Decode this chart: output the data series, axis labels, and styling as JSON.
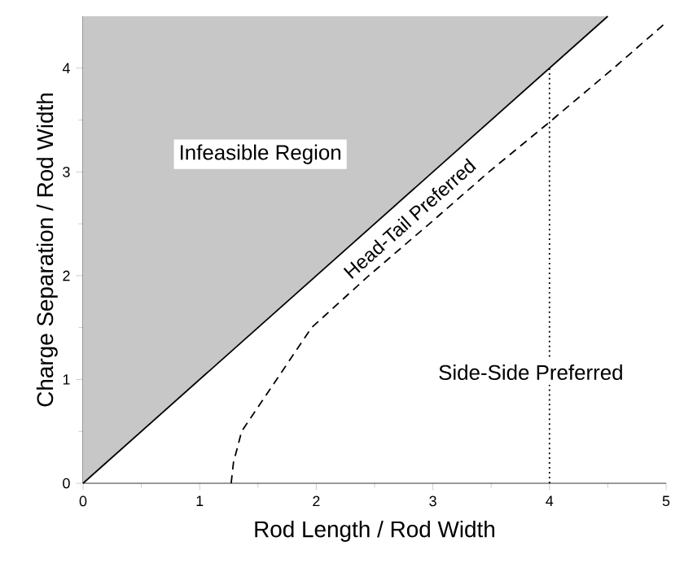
{
  "chart_data": {
    "type": "line",
    "xlabel": "Rod Length / Rod Width",
    "ylabel": "Charge Separation / Rod Width",
    "xlim": [
      0,
      5
    ],
    "ylim": [
      0,
      4.5
    ],
    "xticks": [
      0,
      1,
      2,
      3,
      4,
      5
    ],
    "yticks": [
      0,
      1,
      2,
      3,
      4
    ],
    "grid": false,
    "ref_lines": [
      {
        "axis": "x",
        "value": 4,
        "line_style": "dotted"
      }
    ],
    "series": [
      {
        "color": "#000000",
        "line_style": "solid",
        "x": [
          0,
          4.5
        ],
        "values": [
          0,
          4.5
        ],
        "lower": [
          0,
          4.5
        ],
        "upper": [
          4.5,
          4.5
        ]
      },
      {
        "color": "#000000",
        "line_style": "dashed",
        "x": [
          1.27,
          1.29,
          1.36,
          1.66,
          1.96,
          2.45,
          2.97,
          3.48,
          4.0,
          4.55,
          5.0
        ],
        "values": [
          0,
          0.2,
          0.5,
          1.0,
          1.5,
          2.0,
          2.5,
          3.0,
          3.48,
          4.0,
          4.44
        ]
      }
    ],
    "annotations": [
      "Infeasible Region",
      "Head-Tail Preferred",
      "Side-Side Preferred"
    ]
  }
}
